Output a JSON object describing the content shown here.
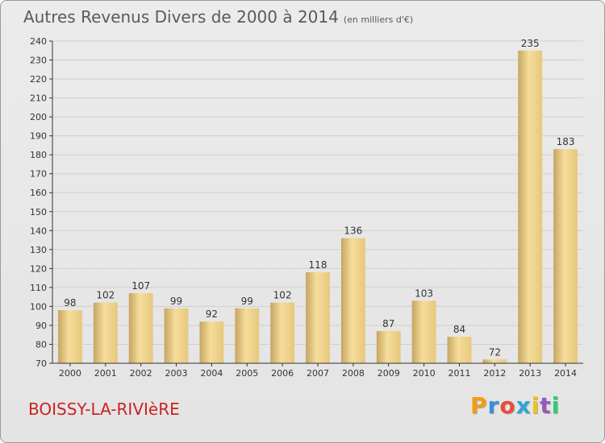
{
  "title": "Autres Revenus Divers de 2000 à 2014",
  "subtitle": "(en milliers d'€)",
  "commune": "BOISSY-LA-RIVIèRE",
  "logo": {
    "letters": [
      "P",
      "r",
      "o",
      "x",
      "i",
      "t",
      "i"
    ],
    "colors": [
      "#f39c12",
      "#3a8fd8",
      "#e74c3c",
      "#2aa6d8",
      "#f1c40f",
      "#9b59b6",
      "#2ecc71"
    ]
  },
  "colors": {
    "bar_light": "#f6dd9c",
    "bar_dark": "#c6a560",
    "axis": "#333333",
    "grid": "#cfcfcf",
    "title": "#5a5a5a",
    "commune": "#cc2222"
  },
  "chart_data": {
    "type": "bar",
    "title": "Autres Revenus Divers de 2000 à 2014",
    "subtitle": "(en milliers d'€)",
    "categories": [
      "2000",
      "2001",
      "2002",
      "2003",
      "2004",
      "2005",
      "2006",
      "2007",
      "2008",
      "2009",
      "2010",
      "2011",
      "2012",
      "2013",
      "2014"
    ],
    "values": [
      98,
      102,
      107,
      99,
      92,
      99,
      102,
      118,
      136,
      87,
      103,
      84,
      72,
      235,
      183
    ],
    "ylim": [
      70,
      240
    ],
    "yticks": [
      70,
      80,
      90,
      100,
      110,
      120,
      130,
      140,
      150,
      160,
      170,
      180,
      190,
      200,
      210,
      220,
      230,
      240
    ],
    "grid": true,
    "data_labels": true
  }
}
